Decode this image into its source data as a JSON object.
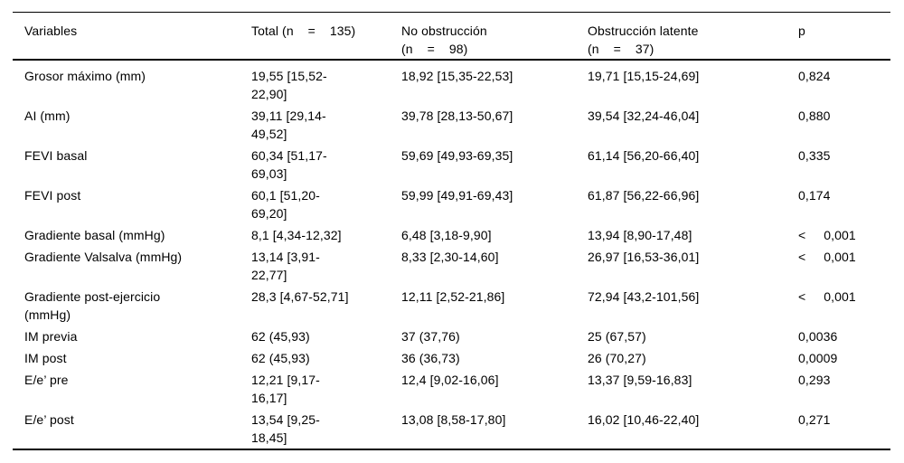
{
  "table": {
    "columns": [
      "Variables",
      "Total (n    =    135)",
      "No obstrucción\n(n    =    98)",
      "Obstrucción latente\n(n    =    37)",
      "p"
    ],
    "rows": [
      [
        "Grosor máximo (mm)",
        "19,55 [15,52-\n22,90]",
        "18,92 [15,35-22,53]",
        "19,71 [15,15-24,69]",
        "0,824"
      ],
      [
        "AI (mm)",
        "39,11 [29,14-\n49,52]",
        "39,78 [28,13-50,67]",
        "39,54 [32,24-46,04]",
        "0,880"
      ],
      [
        "FEVI basal",
        "60,34 [51,17-\n69,03]",
        "59,69 [49,93-69,35]",
        "61,14 [56,20-66,40]",
        "0,335"
      ],
      [
        "FEVI post",
        "60,1 [51,20-\n69,20]",
        "59,99 [49,91-69,43]",
        "61,87 [56,22-66,96]",
        "0,174"
      ],
      [
        "Gradiente basal (mmHg)",
        "8,1 [4,34-12,32]",
        "6,48 [3,18-9,90]",
        "13,94 [8,90-17,48]",
        "<     0,001"
      ],
      [
        "Gradiente Valsalva (mmHg)",
        "13,14 [3,91-\n22,77]",
        "8,33 [2,30-14,60]",
        "26,97 [16,53-36,01]",
        "<     0,001"
      ],
      [
        "Gradiente post-ejercicio\n(mmHg)",
        "28,3 [4,67-52,71]",
        "12,11 [2,52-21,86]",
        "72,94 [43,2-101,56]",
        "<     0,001"
      ],
      [
        "IM previa",
        "62 (45,93)",
        "37 (37,76)",
        "25 (67,57)",
        "0,0036"
      ],
      [
        "IM post",
        "62 (45,93)",
        "36 (36,73)",
        "26 (70,27)",
        "0,0009"
      ],
      [
        "E/e’ pre",
        "12,21 [9,17-\n16,17]",
        "12,4 [9,02-16,06]",
        "13,37 [9,59-16,83]",
        "0,293"
      ],
      [
        "E/e’ post",
        "13,54 [9,25-\n18,45]",
        "13,08 [8,58-17,80]",
        "16,02 [10,46-22,40]",
        "0,271"
      ]
    ]
  }
}
